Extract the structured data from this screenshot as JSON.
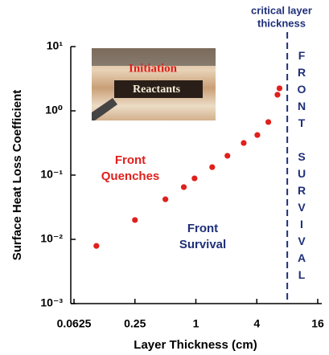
{
  "chart_data": {
    "type": "scatter",
    "x_label": "Layer Thickness (cm)",
    "y_label": "Surface Heat Loss Coefficient",
    "x": [
      0.104,
      0.25,
      0.5,
      0.76,
      0.97,
      1.45,
      2.05,
      2.97,
      4.05,
      5.2,
      6.4,
      6.7
    ],
    "values": [
      0.0079,
      0.02,
      0.042,
      0.065,
      0.089,
      0.133,
      0.2,
      0.316,
      0.42,
      0.67,
      1.78,
      2.24
    ],
    "color": "#e0201c",
    "x_log_base": 2,
    "y_log_base": 10,
    "xlim": [
      0.0625,
      16
    ],
    "ylim": [
      0.001,
      10
    ],
    "xticks": [
      0.0625,
      0.25,
      1,
      4,
      16
    ],
    "yticks": [
      {
        "value": 10,
        "label": "10¹"
      },
      {
        "value": 1,
        "label": "10⁰"
      },
      {
        "value": 0.1,
        "label": "10⁻¹"
      },
      {
        "value": 0.01,
        "label": "10⁻²"
      },
      {
        "value": 0.001,
        "label": "10⁻³"
      }
    ],
    "critical_thickness": 8,
    "critical_label": [
      "critical layer",
      "thickness"
    ],
    "side_label": "FRONT SURVIVAL",
    "quench_label": [
      "Front",
      "Quenches"
    ],
    "survival_label": [
      "Front",
      "Survival"
    ],
    "inset_labels": [
      "Initiation",
      "Reactants"
    ]
  }
}
